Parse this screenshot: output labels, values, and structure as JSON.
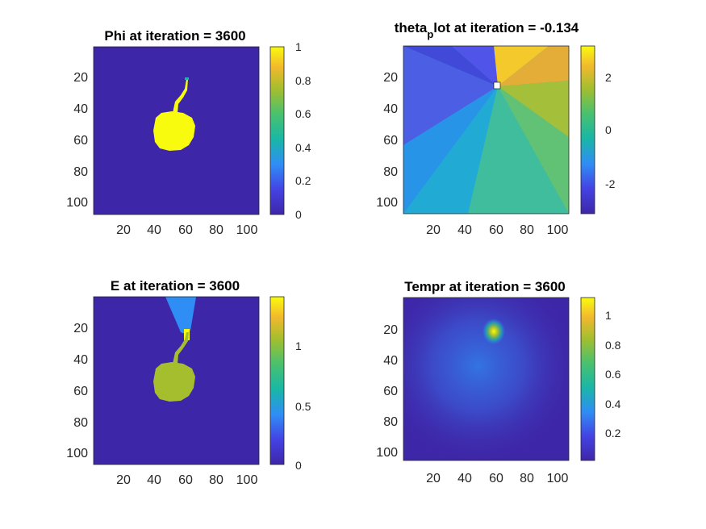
{
  "colors": {
    "parula_low": "#3e26a8",
    "parula_blue": "#2f8ef5",
    "parula_teal": "#19b7a6",
    "parula_green": "#a5be2e",
    "parula_yellow": "#f9fb0e",
    "axis_line": "#262626"
  },
  "chart_data": [
    {
      "type": "heatmap",
      "id": "phi",
      "title": "Phi at iteration = 3600",
      "xticks": [
        "20",
        "40",
        "60",
        "80",
        "100"
      ],
      "yticks": [
        "20",
        "40",
        "60",
        "80",
        "100"
      ],
      "xlim": [
        0,
        107
      ],
      "ylim": [
        0,
        107
      ],
      "colorbar": {
        "ticks": [
          "0",
          "0.2",
          "0.4",
          "0.6",
          "0.8",
          "1"
        ],
        "range": [
          0,
          1
        ]
      }
    },
    {
      "type": "heatmap",
      "id": "theta",
      "title": "theta",
      "title_sub": "p",
      "title_rest": "lot at iteration = -0.134",
      "xticks": [
        "20",
        "40",
        "60",
        "80",
        "100"
      ],
      "yticks": [
        "20",
        "40",
        "60",
        "80",
        "100"
      ],
      "xlim": [
        0,
        107
      ],
      "ylim": [
        0,
        107
      ],
      "colorbar": {
        "ticks": [
          "2",
          "0",
          "-2"
        ],
        "range": [
          -3.1416,
          3.1416
        ]
      }
    },
    {
      "type": "heatmap",
      "id": "E",
      "title": "E at iteration = 3600",
      "xticks": [
        "20",
        "40",
        "60",
        "80",
        "100"
      ],
      "yticks": [
        "20",
        "40",
        "60",
        "80",
        "100"
      ],
      "xlim": [
        0,
        107
      ],
      "ylim": [
        0,
        107
      ],
      "colorbar": {
        "ticks": [
          "1",
          "0.5",
          "0"
        ],
        "range": [
          0,
          1.4
        ]
      }
    },
    {
      "type": "heatmap",
      "id": "tempr",
      "title": "Tempr at iteration = 3600",
      "xticks": [
        "20",
        "40",
        "60",
        "80",
        "100"
      ],
      "yticks": [
        "20",
        "40",
        "60",
        "80",
        "100"
      ],
      "xlim": [
        0,
        107
      ],
      "ylim": [
        0,
        107
      ],
      "colorbar": {
        "ticks": [
          "1",
          "0.8",
          "0.6",
          "0.4",
          "0.2"
        ],
        "range": [
          0,
          1.1
        ]
      }
    }
  ]
}
